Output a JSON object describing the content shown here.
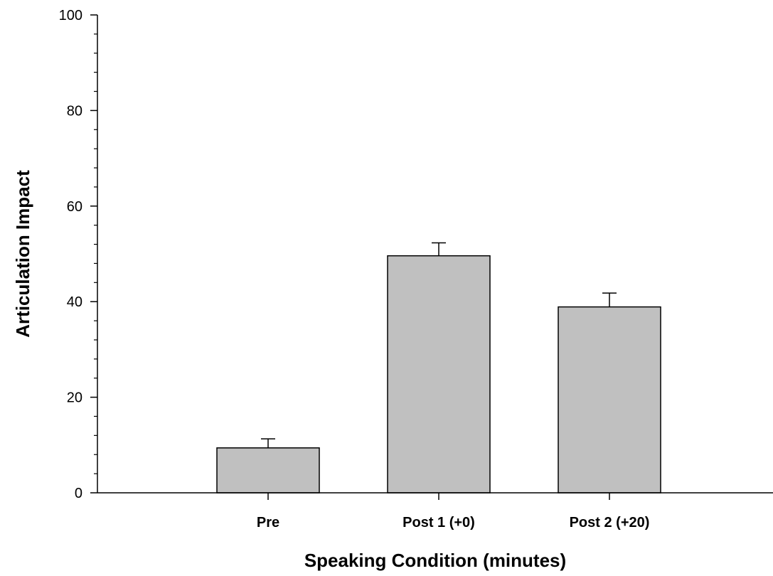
{
  "colors": {
    "bar_fill": "#c0c0c0",
    "bar_stroke": "#000000",
    "axis": "#000000"
  },
  "chart_data": {
    "type": "bar",
    "categories": [
      "Pre",
      "Post 1 (+0)",
      "Post 2 (+20)"
    ],
    "values": [
      9.4,
      49.6,
      38.9
    ],
    "errors": [
      1.9,
      2.7,
      2.9
    ],
    "xlabel": "Speaking Condition (minutes)",
    "ylabel": "Articulation Impact",
    "ylim": [
      0,
      100
    ],
    "y_ticks": [
      0,
      20,
      40,
      60,
      80,
      100
    ],
    "y_minor_step": 4,
    "grid": false,
    "legend": "none"
  }
}
